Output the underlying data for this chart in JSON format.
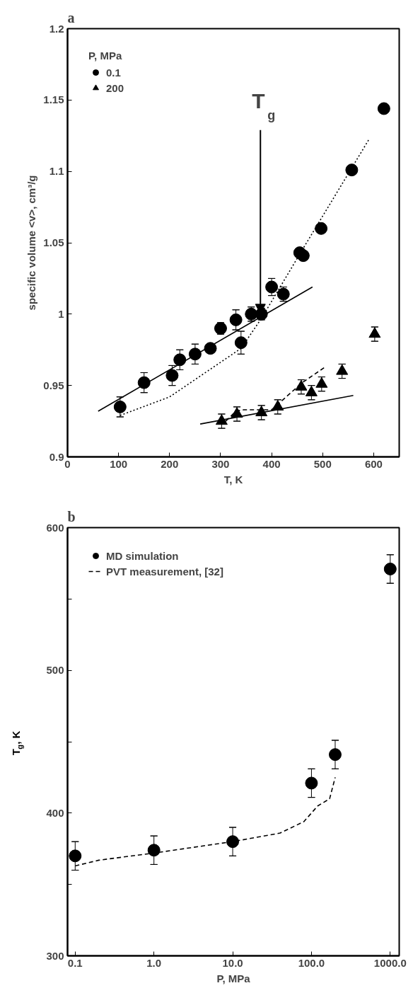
{
  "chart_data": [
    {
      "type": "scatter",
      "title": "a",
      "xlabel": "T, K",
      "ylabel": "specific volume <v>, cm³/g",
      "legend_title": "P, MPa",
      "legend": "top left",
      "grid": false,
      "xlim": [
        0,
        650
      ],
      "ylim": [
        0.9,
        1.2
      ],
      "xticks": [
        0,
        100,
        200,
        300,
        400,
        500,
        600
      ],
      "yticks": [
        0.9,
        0.95,
        1,
        1.05,
        1.1,
        1.15,
        1.2
      ],
      "annotations": [
        {
          "text": "T$_{g}$",
          "x": 378,
          "y": 1.0
        }
      ],
      "series": [
        {
          "name": "0.1",
          "type": "scatter",
          "marker": "circle",
          "color": "#000000",
          "x": [
            103,
            150,
            205,
            220,
            250,
            280,
            300,
            330,
            340,
            360,
            380,
            400,
            423,
            455,
            462,
            497,
            557,
            620
          ],
          "values": [
            0.935,
            0.952,
            0.957,
            0.968,
            0.972,
            0.976,
            0.99,
            0.996,
            0.98,
            1.0,
            1.0,
            1.019,
            1.014,
            1.043,
            1.041,
            1.06,
            1.101,
            1.144
          ],
          "errors": [
            0.007,
            0.007,
            0.007,
            0.007,
            0.007,
            null,
            0.004,
            0.007,
            0.008,
            0.005,
            0.004,
            0.006,
            0.005,
            null,
            null,
            null,
            null,
            null
          ]
        },
        {
          "name": "200",
          "type": "scatter",
          "marker": "triangle",
          "color": "#000000",
          "x": [
            302,
            332,
            380,
            412,
            458,
            478,
            498,
            538,
            602
          ],
          "values": [
            0.925,
            0.93,
            0.931,
            0.935,
            0.949,
            0.945,
            0.951,
            0.96,
            0.986
          ],
          "errors": [
            0.005,
            0.005,
            0.005,
            0.005,
            0.005,
            0.005,
            0.005,
            0.005,
            0.005
          ]
        },
        {
          "type": "line",
          "line_style": "solid",
          "color": "#000000",
          "x": [
            60,
            480
          ],
          "values": [
            0.932,
            1.019
          ]
        },
        {
          "type": "line",
          "line_style": "dotted",
          "color": "#000000",
          "x": [
            103,
            200,
            340,
            380,
            455,
            590
          ],
          "values": [
            0.929,
            0.942,
            0.976,
            0.997,
            1.042,
            1.122
          ]
        },
        {
          "type": "line",
          "line_style": "solid",
          "color": "#000000",
          "x": [
            260,
            560
          ],
          "values": [
            0.923,
            0.943
          ]
        },
        {
          "type": "line",
          "line_style": "dashed",
          "color": "#000000",
          "x": [
            310,
            330,
            345,
            400,
            460,
            505
          ],
          "values": [
            0.925,
            0.932,
            0.933,
            0.933,
            0.952,
            0.963
          ]
        }
      ]
    },
    {
      "type": "scatter",
      "title": "b",
      "xlabel": "P, MPa",
      "ylabel": "T$_{g}$, K",
      "legend": "top left",
      "grid": false,
      "log": "x",
      "xlim": [
        0.08,
        1300
      ],
      "ylim": [
        300,
        600
      ],
      "xticks": [
        {
          "value": 0.1,
          "label": "0.1"
        },
        {
          "value": 1,
          "label": "1.0"
        },
        {
          "value": 10,
          "label": "10.0"
        },
        {
          "value": 100,
          "label": "100.0"
        },
        {
          "value": 1000,
          "label": "1000.0"
        }
      ],
      "yticks": [
        300,
        {
          "value": 350,
          "label": null
        },
        400,
        {
          "value": 450,
          "label": null
        },
        500,
        {
          "value": 550,
          "label": null
        },
        600
      ],
      "series": [
        {
          "name": "MD simulation",
          "type": "scatter",
          "marker": "circle",
          "color": "#000000",
          "x": [
            0.1,
            1,
            10,
            100,
            200,
            1000
          ],
          "values": [
            370,
            374,
            380,
            421,
            441,
            571
          ],
          "errors": [
            10,
            10,
            10,
            10,
            10,
            10
          ]
        },
        {
          "name": "PVT measurement, [32]",
          "type": "line",
          "line_style": "dashed",
          "color": "#000000",
          "x": [
            0.1,
            0.2,
            1,
            10,
            40,
            80,
            120,
            170,
            200
          ],
          "values": [
            363,
            367,
            372,
            380,
            386,
            394,
            405,
            410,
            425
          ]
        }
      ]
    }
  ]
}
